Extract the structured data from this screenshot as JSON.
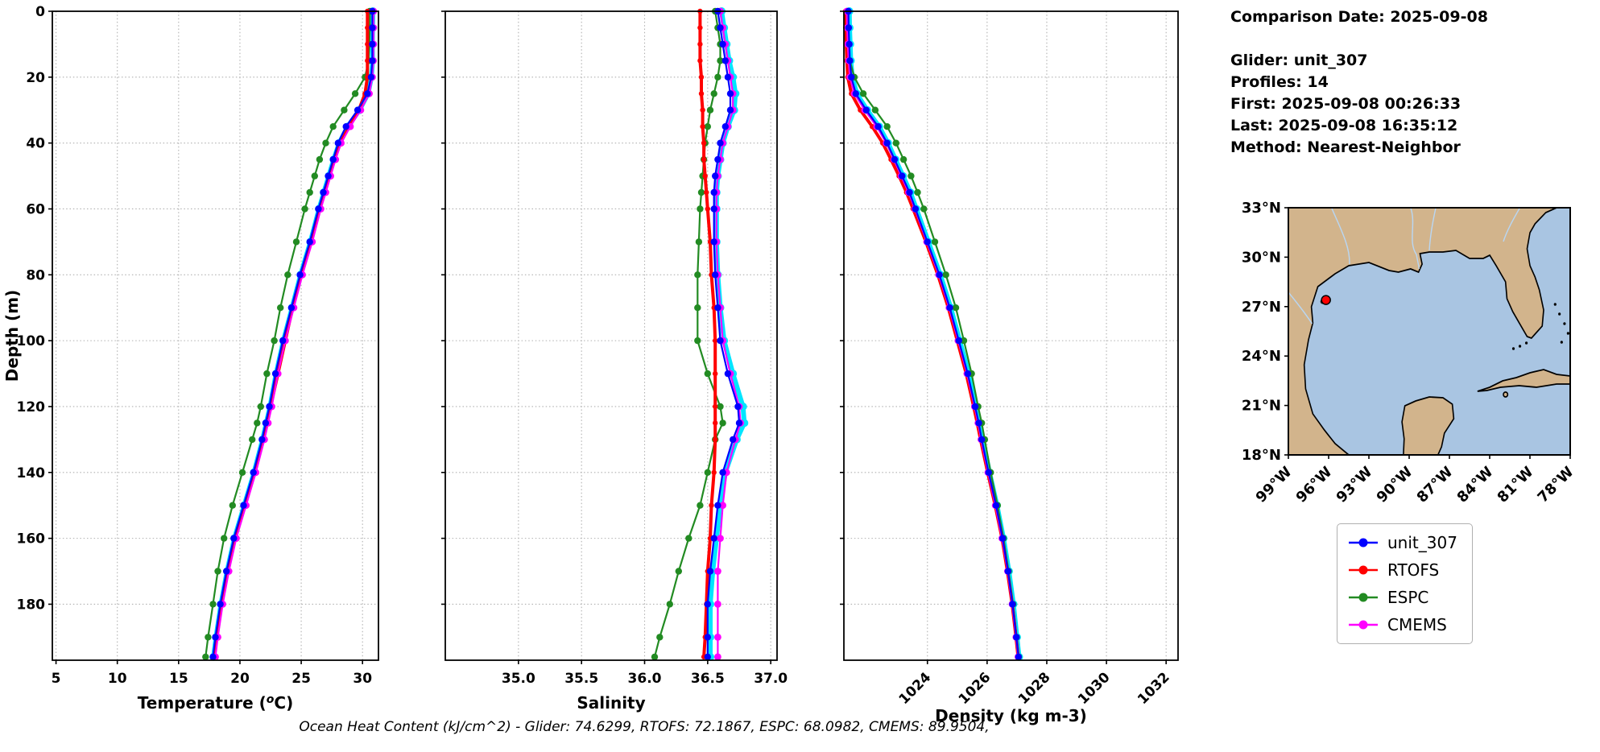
{
  "info": {
    "lines": [
      "Comparison Date: 2025-09-08",
      "",
      "Glider: unit_307",
      "Profiles: 14",
      "First: 2025-09-08 00:26:33",
      "Last: 2025-09-08 16:35:12",
      "Method: Nearest-Neighbor"
    ]
  },
  "caption": "Ocean Heat Content (kJ/cm^2) - Glider: 74.6299,  RTOFS: 72.1867,  ESPC: 68.0982,  CMEMS: 89.9504,",
  "map": {
    "lat_lim": [
      18,
      33
    ],
    "lon_lim_w": [
      99,
      78
    ],
    "lat_ticks": [
      {
        "label": "33°N",
        "lat": 33
      },
      {
        "label": "30°N",
        "lat": 30
      },
      {
        "label": "27°N",
        "lat": 27
      },
      {
        "label": "24°N",
        "lat": 24
      },
      {
        "label": "21°N",
        "lat": 21
      },
      {
        "label": "18°N",
        "lat": 18
      }
    ],
    "lon_ticks": [
      {
        "label": "99°W",
        "lon_w": 99
      },
      {
        "label": "96°W",
        "lon_w": 96
      },
      {
        "label": "93°W",
        "lon_w": 93
      },
      {
        "label": "90°W",
        "lon_w": 90
      },
      {
        "label": "87°W",
        "lon_w": 87
      },
      {
        "label": "84°W",
        "lon_w": 84
      },
      {
        "label": "81°W",
        "lon_w": 81
      },
      {
        "label": "78°W",
        "lon_w": 78
      }
    ],
    "marker": {
      "lon_w": 96.2,
      "lat": 27.4,
      "color": "#ff0000"
    },
    "land_color": "#d2b48c",
    "water_color": "#a9c5e2"
  },
  "chart_data": {
    "type": "line",
    "orientation": "depth-profile",
    "ylabel": "Depth (m)",
    "depth_m": [
      0,
      5,
      10,
      15,
      20,
      25,
      30,
      35,
      40,
      45,
      50,
      55,
      60,
      70,
      80,
      90,
      100,
      110,
      120,
      125,
      130,
      140,
      150,
      160,
      170,
      180,
      190,
      196
    ],
    "depth_lim": [
      0,
      197
    ],
    "depth_ticks": [
      0,
      20,
      40,
      60,
      80,
      100,
      120,
      140,
      160,
      180
    ],
    "styles": {
      "glider_scatter": {
        "color": "#00e5ff",
        "lw": 6,
        "r": 5
      },
      "ESPC": {
        "color": "#228B22",
        "lw": 2.2,
        "r": 4.2
      },
      "RTOFS": {
        "color": "#ff0000",
        "lw": 4,
        "r": 3.2
      },
      "CMEMS": {
        "color": "#ff00ff",
        "lw": 2.2,
        "r": 4.4
      },
      "unit_307": {
        "color": "#0000ff",
        "lw": 2.2,
        "r": 4.2
      }
    },
    "legend": [
      {
        "label": "unit_307",
        "color": "#0000ff"
      },
      {
        "label": "RTOFS",
        "color": "#ff0000"
      },
      {
        "label": "ESPC",
        "color": "#228B22"
      },
      {
        "label": "CMEMS",
        "color": "#ff00ff"
      }
    ],
    "plots": [
      {
        "id": "temperature",
        "xlabel": "Temperature (°C)",
        "xlim": [
          4.7,
          31.3
        ],
        "xticks": [
          5,
          10,
          15,
          20,
          25,
          30
        ],
        "xtick_labels": [
          "5",
          "10",
          "15",
          "20",
          "25",
          "30"
        ],
        "rotate_xtick_labels": false,
        "show_depth_labels": true,
        "series": [
          {
            "name": "glider_scatter",
            "values": [
              30.85,
              30.83,
              30.8,
              30.82,
              30.73,
              30.45,
              29.75,
              28.8,
              28.1,
              27.65,
              27.25,
              26.85,
              26.45,
              25.75,
              24.95,
              24.25,
              23.55,
              22.95,
              22.45,
              22.15,
              21.85,
              21.15,
              20.35,
              19.55,
              18.95,
              18.45,
              18.05,
              17.85
            ]
          },
          {
            "name": "ESPC",
            "values": [
              30.6,
              30.6,
              30.55,
              30.5,
              30.2,
              29.4,
              28.5,
              27.6,
              27.0,
              26.5,
              26.1,
              25.7,
              25.3,
              24.6,
              23.9,
              23.3,
              22.8,
              22.2,
              21.7,
              21.4,
              21.0,
              20.2,
              19.4,
              18.7,
              18.2,
              17.8,
              17.4,
              17.2
            ]
          },
          {
            "name": "RTOFS",
            "values": [
              30.4,
              30.4,
              30.4,
              30.4,
              30.4,
              30.2,
              29.7,
              28.9,
              28.2,
              27.7,
              27.3,
              26.9,
              26.5,
              25.8,
              25.0,
              24.3,
              23.7,
              23.1,
              22.5,
              22.2,
              21.9,
              21.2,
              20.4,
              19.6,
              19.0,
              18.5,
              18.1,
              17.9
            ]
          },
          {
            "name": "CMEMS",
            "values": [
              30.9,
              30.9,
              30.9,
              30.88,
              30.8,
              30.55,
              29.85,
              29.0,
              28.25,
              27.8,
              27.4,
              27.0,
              26.6,
              25.9,
              25.1,
              24.4,
              23.7,
              23.1,
              22.6,
              22.3,
              22.0,
              21.3,
              20.5,
              19.7,
              19.1,
              18.6,
              18.2,
              18.0
            ]
          },
          {
            "name": "unit_307",
            "values": [
              30.8,
              30.8,
              30.8,
              30.8,
              30.7,
              30.4,
              29.6,
              28.65,
              28.0,
              27.6,
              27.2,
              26.8,
              26.4,
              25.7,
              24.9,
              24.2,
              23.5,
              22.9,
              22.4,
              22.1,
              21.8,
              21.1,
              20.3,
              19.5,
              18.9,
              18.4,
              18.0,
              17.8
            ]
          }
        ]
      },
      {
        "id": "salinity",
        "xlabel": "Salinity",
        "xlim": [
          34.42,
          37.05
        ],
        "xticks": [
          35.0,
          35.5,
          36.0,
          36.5,
          37.0
        ],
        "xtick_labels": [
          "35.0",
          "35.5",
          "36.0",
          "36.5",
          "37.0"
        ],
        "rotate_xtick_labels": false,
        "show_depth_labels": false,
        "series": [
          {
            "name": "glider_scatter",
            "values": [
              36.61,
              36.63,
              36.65,
              36.67,
              36.7,
              36.72,
              36.71,
              36.66,
              36.62,
              36.6,
              36.58,
              36.57,
              36.57,
              36.57,
              36.58,
              36.6,
              36.63,
              36.7,
              36.78,
              36.79,
              36.73,
              36.64,
              36.6,
              36.57,
              36.54,
              36.52,
              36.52,
              36.52
            ]
          },
          {
            "name": "ESPC",
            "values": [
              36.56,
              36.58,
              36.6,
              36.6,
              36.58,
              36.55,
              36.52,
              36.5,
              36.48,
              36.47,
              36.46,
              36.45,
              36.44,
              36.43,
              36.42,
              36.42,
              36.42,
              36.5,
              36.6,
              36.62,
              36.56,
              36.5,
              36.44,
              36.35,
              36.27,
              36.2,
              36.12,
              36.08
            ]
          },
          {
            "name": "RTOFS",
            "values": [
              36.44,
              36.44,
              36.44,
              36.44,
              36.45,
              36.45,
              36.46,
              36.46,
              36.47,
              36.47,
              36.48,
              36.49,
              36.5,
              36.52,
              36.53,
              36.55,
              36.56,
              36.56,
              36.56,
              36.56,
              36.56,
              36.55,
              36.53,
              36.52,
              36.5,
              36.49,
              36.48,
              36.47
            ]
          },
          {
            "name": "CMEMS",
            "values": [
              36.6,
              36.62,
              36.64,
              36.66,
              36.68,
              36.7,
              36.7,
              36.66,
              36.62,
              36.6,
              36.58,
              36.57,
              36.57,
              36.57,
              36.58,
              36.6,
              36.62,
              36.68,
              36.75,
              36.76,
              36.72,
              36.65,
              36.62,
              36.6,
              36.58,
              36.58,
              36.58,
              36.58
            ]
          },
          {
            "name": "unit_307",
            "values": [
              36.58,
              36.6,
              36.62,
              36.64,
              36.66,
              36.68,
              36.68,
              36.64,
              36.6,
              36.58,
              36.56,
              36.55,
              36.55,
              36.55,
              36.56,
              36.58,
              36.6,
              36.66,
              36.74,
              36.75,
              36.7,
              36.62,
              36.58,
              36.55,
              36.52,
              36.5,
              36.5,
              36.5
            ]
          }
        ]
      },
      {
        "id": "density",
        "xlabel": "Density (kg m-3)",
        "xlim": [
          1021.2,
          1032.4
        ],
        "xticks": [
          1024,
          1026,
          1028,
          1030,
          1032
        ],
        "xtick_labels": [
          "1024",
          "1026",
          "1028",
          "1030",
          "1032"
        ],
        "rotate_xtick_labels": true,
        "show_depth_labels": false,
        "series": [
          {
            "name": "glider_scatter",
            "values": [
              1021.38,
              1021.39,
              1021.41,
              1021.43,
              1021.48,
              1021.63,
              1021.98,
              1022.38,
              1022.68,
              1022.93,
              1023.18,
              1023.43,
              1023.63,
              1024.03,
              1024.43,
              1024.78,
              1025.08,
              1025.38,
              1025.63,
              1025.75,
              1025.85,
              1026.08,
              1026.33,
              1026.55,
              1026.73,
              1026.88,
              1027.0,
              1027.07
            ]
          },
          {
            "name": "ESPC",
            "values": [
              1021.3,
              1021.32,
              1021.35,
              1021.4,
              1021.55,
              1021.85,
              1022.25,
              1022.65,
              1022.95,
              1023.2,
              1023.45,
              1023.67,
              1023.88,
              1024.25,
              1024.62,
              1024.95,
              1025.22,
              1025.48,
              1025.7,
              1025.82,
              1025.92,
              1026.12,
              1026.35,
              1026.55,
              1026.72,
              1026.87,
              1026.99,
              1027.06
            ]
          },
          {
            "name": "RTOFS",
            "values": [
              1021.25,
              1021.26,
              1021.28,
              1021.3,
              1021.33,
              1021.45,
              1021.75,
              1022.15,
              1022.5,
              1022.78,
              1023.05,
              1023.3,
              1023.52,
              1023.95,
              1024.35,
              1024.7,
              1025.0,
              1025.3,
              1025.55,
              1025.67,
              1025.78,
              1026.02,
              1026.27,
              1026.5,
              1026.68,
              1026.84,
              1026.97,
              1027.04
            ]
          },
          {
            "name": "CMEMS",
            "values": [
              1021.3,
              1021.31,
              1021.33,
              1021.36,
              1021.4,
              1021.55,
              1021.9,
              1022.3,
              1022.62,
              1022.88,
              1023.12,
              1023.37,
              1023.58,
              1023.98,
              1024.38,
              1024.73,
              1025.03,
              1025.33,
              1025.58,
              1025.7,
              1025.8,
              1026.03,
              1026.28,
              1026.5,
              1026.69,
              1026.84,
              1026.97,
              1027.04
            ]
          },
          {
            "name": "unit_307",
            "values": [
              1021.35,
              1021.36,
              1021.38,
              1021.4,
              1021.45,
              1021.6,
              1021.95,
              1022.35,
              1022.65,
              1022.9,
              1023.15,
              1023.4,
              1023.6,
              1024.0,
              1024.4,
              1024.75,
              1025.05,
              1025.35,
              1025.6,
              1025.72,
              1025.82,
              1026.05,
              1026.3,
              1026.52,
              1026.7,
              1026.85,
              1026.98,
              1027.05
            ]
          }
        ]
      }
    ]
  }
}
